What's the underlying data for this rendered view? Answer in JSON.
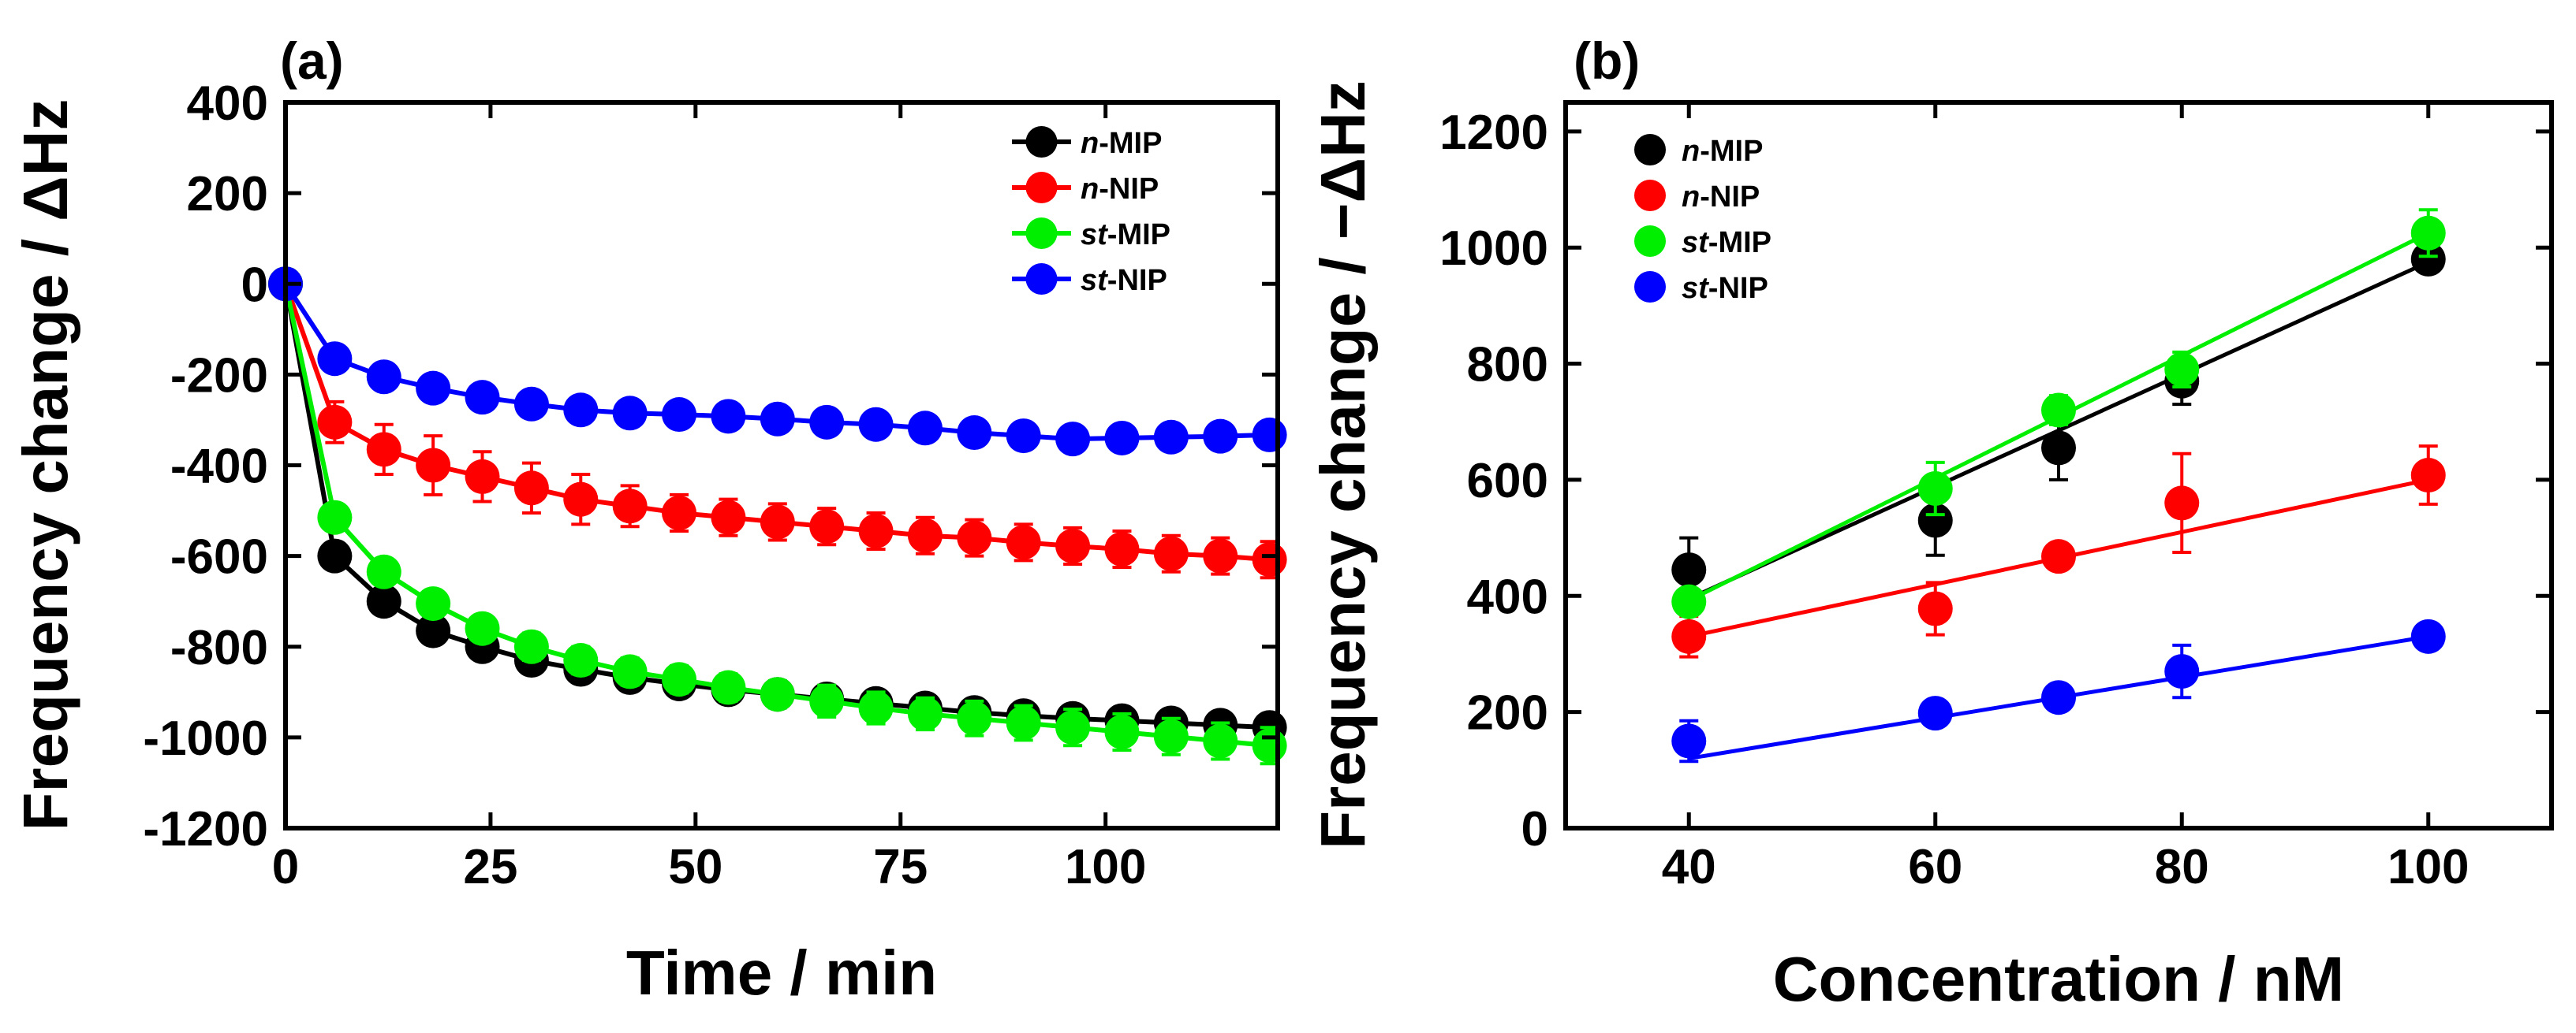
{
  "chart_data": [
    {
      "panel": "(a)",
      "type": "line",
      "xlabel": "Time / min",
      "ylabel": "Frequency change / ΔHz",
      "xlim": [
        0,
        121
      ],
      "ylim": [
        -1200,
        400
      ],
      "xticks": [
        0,
        25,
        50,
        75,
        100
      ],
      "yticks": [
        400,
        200,
        0,
        -200,
        -400,
        -600,
        -800,
        -1000,
        -1200
      ],
      "legend_position": "top-right",
      "grid": false,
      "x": [
        0,
        6,
        12,
        18,
        24,
        30,
        36,
        42,
        48,
        54,
        60,
        66,
        72,
        78,
        84,
        90,
        96,
        102,
        108,
        114,
        120
      ],
      "series": [
        {
          "prefix": "n",
          "suffix": "-MIP",
          "color": "#000000",
          "values": [
            0,
            -600,
            -700,
            -765,
            -800,
            -830,
            -850,
            -868,
            -882,
            -895,
            -905,
            -915,
            -925,
            -935,
            -945,
            -952,
            -958,
            -963,
            -968,
            -973,
            -978
          ],
          "errors": [
            0,
            10,
            15,
            15,
            18,
            18,
            20,
            20,
            20,
            20,
            20,
            20,
            20,
            22,
            22,
            22,
            22,
            22,
            22,
            22,
            22
          ]
        },
        {
          "prefix": "n",
          "suffix": "-NIP",
          "color": "#ff0000",
          "values": [
            0,
            -305,
            -365,
            -400,
            -425,
            -450,
            -475,
            -490,
            -505,
            -515,
            -525,
            -535,
            -545,
            -555,
            -560,
            -570,
            -578,
            -585,
            -595,
            -600,
            -608
          ],
          "errors": [
            0,
            45,
            55,
            65,
            55,
            55,
            55,
            45,
            40,
            40,
            40,
            40,
            40,
            40,
            40,
            40,
            40,
            40,
            40,
            40,
            40
          ]
        },
        {
          "prefix": "st",
          "suffix": "-MIP",
          "color": "#00ee00",
          "values": [
            0,
            -515,
            -635,
            -705,
            -760,
            -800,
            -830,
            -855,
            -872,
            -890,
            -905,
            -920,
            -935,
            -948,
            -958,
            -968,
            -978,
            -988,
            -998,
            -1008,
            -1018
          ],
          "errors": [
            0,
            10,
            15,
            20,
            25,
            30,
            30,
            30,
            30,
            30,
            30,
            35,
            35,
            35,
            38,
            38,
            40,
            40,
            40,
            40,
            40
          ]
        },
        {
          "prefix": "st",
          "suffix": "-NIP",
          "color": "#0000ff",
          "values": [
            0,
            -165,
            -205,
            -230,
            -250,
            -265,
            -278,
            -285,
            -288,
            -292,
            -298,
            -305,
            -310,
            -318,
            -328,
            -335,
            -342,
            -340,
            -338,
            -336,
            -333
          ],
          "errors": [
            0,
            8,
            10,
            10,
            10,
            10,
            10,
            10,
            10,
            10,
            10,
            10,
            10,
            10,
            10,
            10,
            10,
            10,
            10,
            10,
            10
          ]
        }
      ]
    },
    {
      "panel": "(b)",
      "type": "scatter",
      "xlabel": "Concentration / nM",
      "ylabel": "Frequency change / −ΔHz",
      "xlim": [
        30,
        110
      ],
      "ylim": [
        0,
        1250
      ],
      "xticks": [
        40,
        60,
        80,
        100
      ],
      "yticks": [
        0,
        200,
        400,
        600,
        800,
        1000,
        1200
      ],
      "legend_position": "top-left",
      "grid": false,
      "x": [
        40,
        60,
        70,
        80,
        100
      ],
      "series": [
        {
          "prefix": "n",
          "suffix": "-MIP",
          "color": "#000000",
          "values": [
            445,
            530,
            655,
            770,
            980
          ],
          "errors": [
            55,
            60,
            55,
            40,
            20
          ],
          "fit": [
            [
              40,
              395
            ],
            [
              100,
              975
            ]
          ]
        },
        {
          "prefix": "n",
          "suffix": "-NIP",
          "color": "#ff0000",
          "values": [
            330,
            378,
            468,
            560,
            608
          ],
          "errors": [
            35,
            45,
            15,
            85,
            50
          ],
          "fit": [
            [
              40,
              330
            ],
            [
              100,
              600
            ]
          ]
        },
        {
          "prefix": "st",
          "suffix": "-MIP",
          "color": "#00ee00",
          "values": [
            390,
            585,
            720,
            790,
            1025
          ],
          "errors": [
            15,
            45,
            25,
            30,
            40
          ],
          "fit": [
            [
              40,
              392
            ],
            [
              100,
              1025
            ]
          ]
        },
        {
          "prefix": "st",
          "suffix": "-NIP",
          "color": "#0000ff",
          "values": [
            150,
            198,
            225,
            270,
            330
          ],
          "errors": [
            35,
            15,
            15,
            45,
            10
          ],
          "fit": [
            [
              40,
              120
            ],
            [
              100,
              330
            ]
          ]
        }
      ]
    }
  ]
}
